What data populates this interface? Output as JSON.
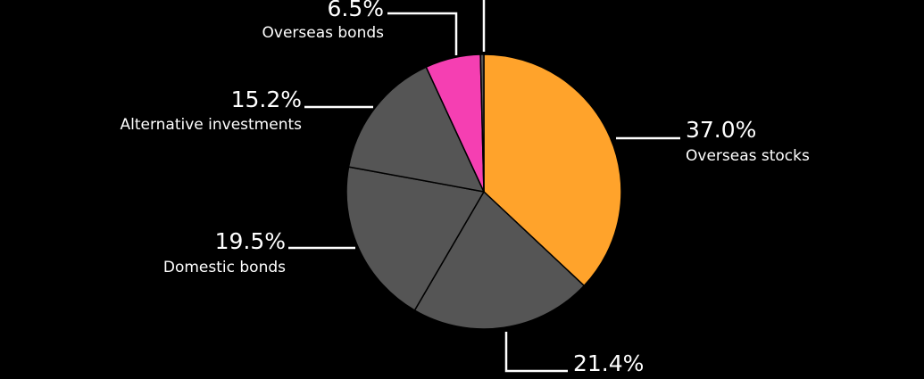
{
  "chart_data": {
    "type": "pie",
    "title": "",
    "units": "%",
    "slices": [
      {
        "label": "Overseas stocks",
        "value": 37.0,
        "value_label": "37.0%",
        "color": "#ffa32b"
      },
      {
        "label": "",
        "value": 21.4,
        "value_label": "21.4%",
        "color": "#555555"
      },
      {
        "label": "Domestic bonds",
        "value": 19.5,
        "value_label": "19.5%",
        "color": "#555555"
      },
      {
        "label": "Alternative investments",
        "value": 15.2,
        "value_label": "15.2%",
        "color": "#555555"
      },
      {
        "label": "Overseas bonds",
        "value": 6.5,
        "value_label": "6.5%",
        "color": "#f53fb2"
      },
      {
        "label": "",
        "value": 0.4,
        "value_label": "",
        "color": "#555555"
      }
    ],
    "slice_border_color": "#000000",
    "background": "#000000",
    "legend": "none"
  }
}
